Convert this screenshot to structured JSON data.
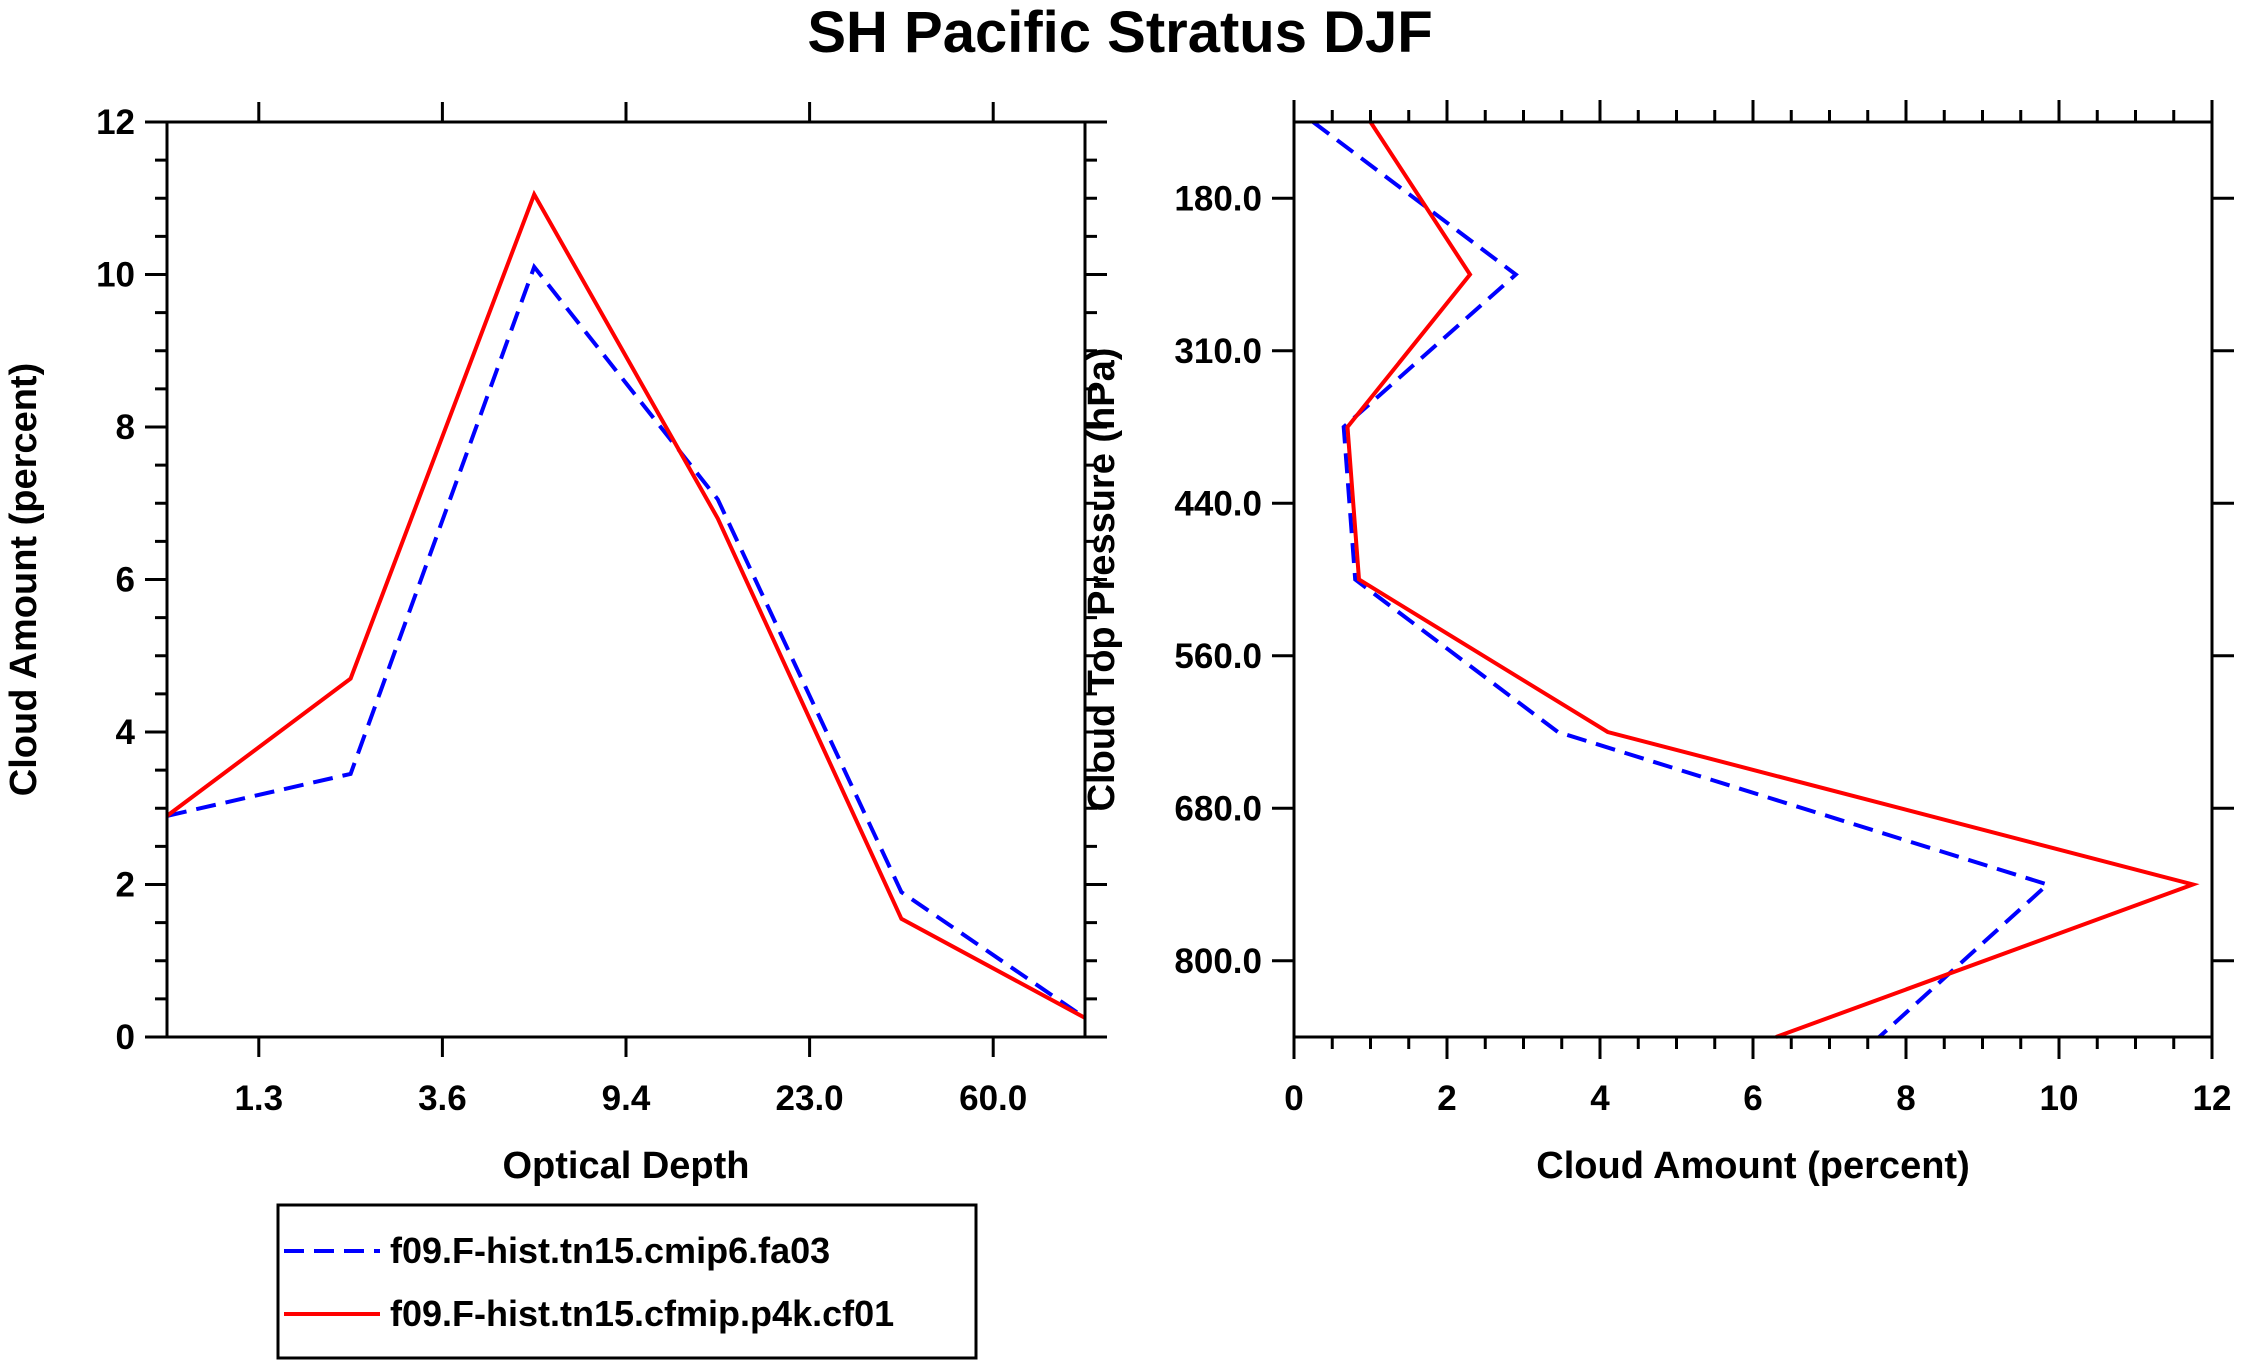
{
  "title": "SH Pacific Stratus DJF",
  "colors": {
    "series_blue": "#0000ff",
    "series_red": "#ff0000",
    "axis": "#000000"
  },
  "legend": {
    "items": [
      {
        "label": "f09.F-hist.tn15.cmip6.fa03",
        "style": "dashed",
        "color": "#0000ff"
      },
      {
        "label": "f09.F-hist.tn15.cfmip.p4k.cf01",
        "style": "solid",
        "color": "#ff0000"
      }
    ]
  },
  "chart_data": [
    {
      "type": "line",
      "title": "",
      "xlabel": "Optical Depth",
      "ylabel": "Cloud Amount (percent)",
      "x_index": [
        0,
        1,
        2,
        3,
        4,
        5
      ],
      "xticks_index": [
        0.5,
        1.5,
        2.5,
        3.5,
        4.5
      ],
      "xtick_labels": [
        "1.3",
        "3.6",
        "9.4",
        "23.0",
        "60.0"
      ],
      "xlim_index": [
        0,
        5
      ],
      "ylim": [
        0,
        12
      ],
      "yticks": [
        0,
        2,
        4,
        6,
        8,
        10,
        12
      ],
      "ytick_labels": [
        "0",
        "2",
        "4",
        "6",
        "8",
        "10",
        "12"
      ],
      "y_minor_step": 0.5,
      "series": [
        {
          "name": "f09.F-hist.tn15.cmip6.fa03",
          "values": [
            2.9,
            3.45,
            10.1,
            7.05,
            1.9,
            0.25
          ]
        },
        {
          "name": "f09.F-hist.tn15.cfmip.p4k.cf01",
          "values": [
            2.9,
            4.7,
            11.05,
            6.8,
            1.55,
            0.25
          ]
        }
      ]
    },
    {
      "type": "line",
      "title": "",
      "xlabel": "Cloud Amount (percent)",
      "ylabel": "Cloud Top Pressure (hPa)",
      "xlim": [
        0,
        12
      ],
      "xticks": [
        0,
        2,
        4,
        6,
        8,
        10,
        12
      ],
      "xtick_labels": [
        "0",
        "2",
        "4",
        "6",
        "8",
        "10",
        "12"
      ],
      "x_minor_step": 0.5,
      "level_index": [
        0,
        1,
        2,
        3,
        4,
        5,
        6
      ],
      "yticks_index": [
        0.5,
        1.5,
        2.5,
        3.5,
        4.5,
        5.5
      ],
      "ytick_labels": [
        "180.0",
        "310.0",
        "440.0",
        "560.0",
        "680.0",
        "800.0"
      ],
      "ylim_index": [
        0,
        6
      ],
      "series": [
        {
          "name": "f09.F-hist.tn15.cmip6.fa03",
          "values": [
            0.25,
            2.9,
            0.65,
            0.8,
            3.45,
            9.85,
            7.65
          ]
        },
        {
          "name": "f09.F-hist.tn15.cfmip.p4k.cf01",
          "values": [
            1.0,
            2.3,
            0.7,
            0.85,
            4.1,
            11.75,
            6.3
          ]
        }
      ]
    }
  ]
}
